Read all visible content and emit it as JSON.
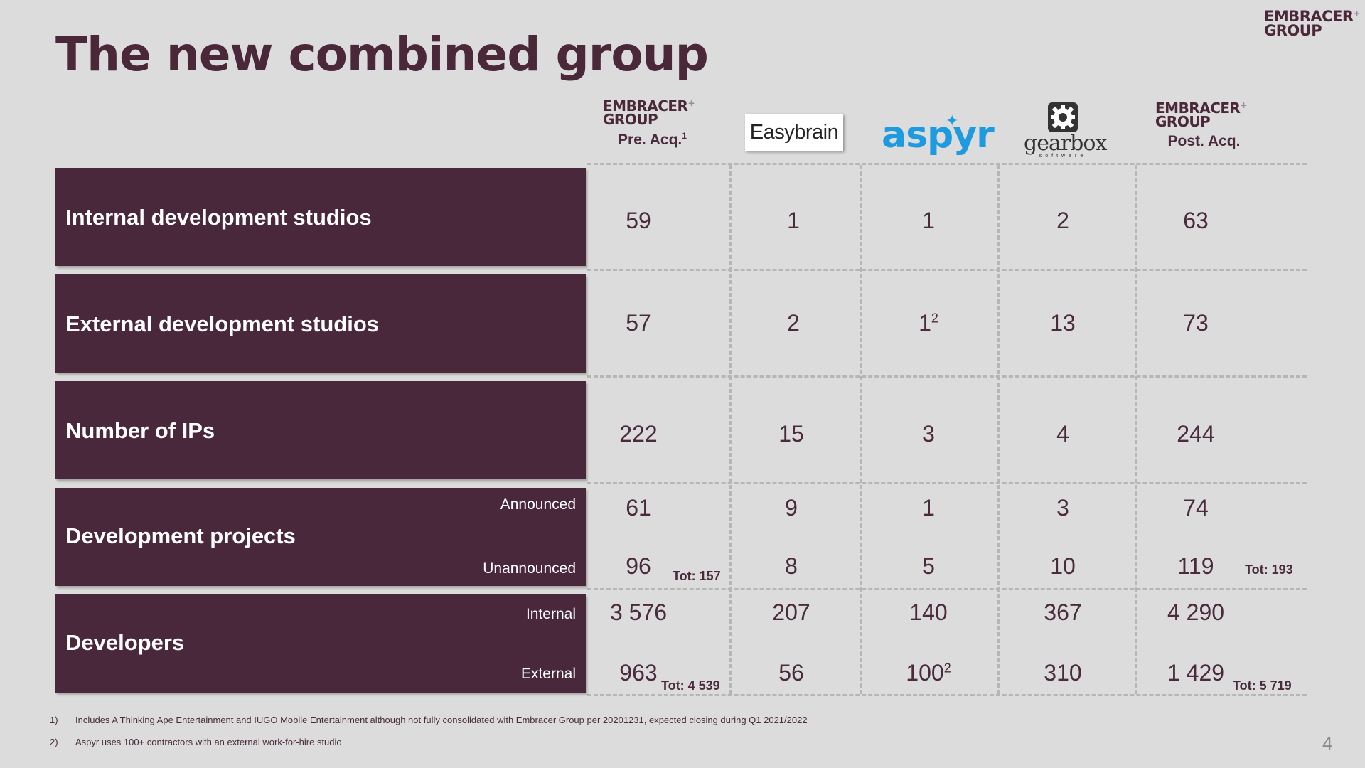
{
  "title": "The new combined group",
  "brand": {
    "line1": "EMBRACER",
    "line2": "GROUP",
    "plus": "+"
  },
  "columns": {
    "pre": {
      "label": "Pre. Acq.",
      "sup": "1"
    },
    "easybrain": "Easybrain",
    "aspyr": "aspyr",
    "gearbox": {
      "word": "gearbox",
      "sub": "software"
    },
    "post": {
      "label": "Post. Acq."
    }
  },
  "rows": {
    "internal_studios": {
      "label": "Internal development studios",
      "values": [
        "59",
        "1",
        "1",
        "2",
        "63"
      ]
    },
    "external_studios": {
      "label": "External development studios",
      "values": [
        "57",
        "2",
        "1",
        "13",
        "73"
      ],
      "aspyr_sup": "2"
    },
    "ips": {
      "label": "Number of IPs",
      "values": [
        "222",
        "15",
        "3",
        "4",
        "244"
      ]
    },
    "projects": {
      "label": "Development projects",
      "announced_label": "Announced",
      "unannounced_label": "Unannounced",
      "announced": [
        "61",
        "9",
        "1",
        "3",
        "74"
      ],
      "unannounced": [
        "96",
        "8",
        "5",
        "10",
        "119"
      ],
      "tot_pre": "Tot: 157",
      "tot_post": "Tot: 193"
    },
    "developers": {
      "label": "Developers",
      "internal_label": "Internal",
      "external_label": "External",
      "internal": [
        "3 576",
        "207",
        "140",
        "367",
        "4 290"
      ],
      "external": [
        "963",
        "56",
        "100",
        "310",
        "1 429"
      ],
      "aspyr_sup": "2",
      "tot_pre": "Tot: 4 539",
      "tot_post": "Tot: 5 719"
    }
  },
  "footnotes": [
    {
      "num": "1)",
      "text": "Includes A Thinking Ape Entertainment and IUGO Mobile Entertainment although not fully consolidated with Embracer Group per 20201231, expected closing during Q1 2021/2022"
    },
    {
      "num": "2)",
      "text": "Aspyr uses 100+ contractors with an external work-for-hire studio"
    }
  ],
  "page_number": "4"
}
